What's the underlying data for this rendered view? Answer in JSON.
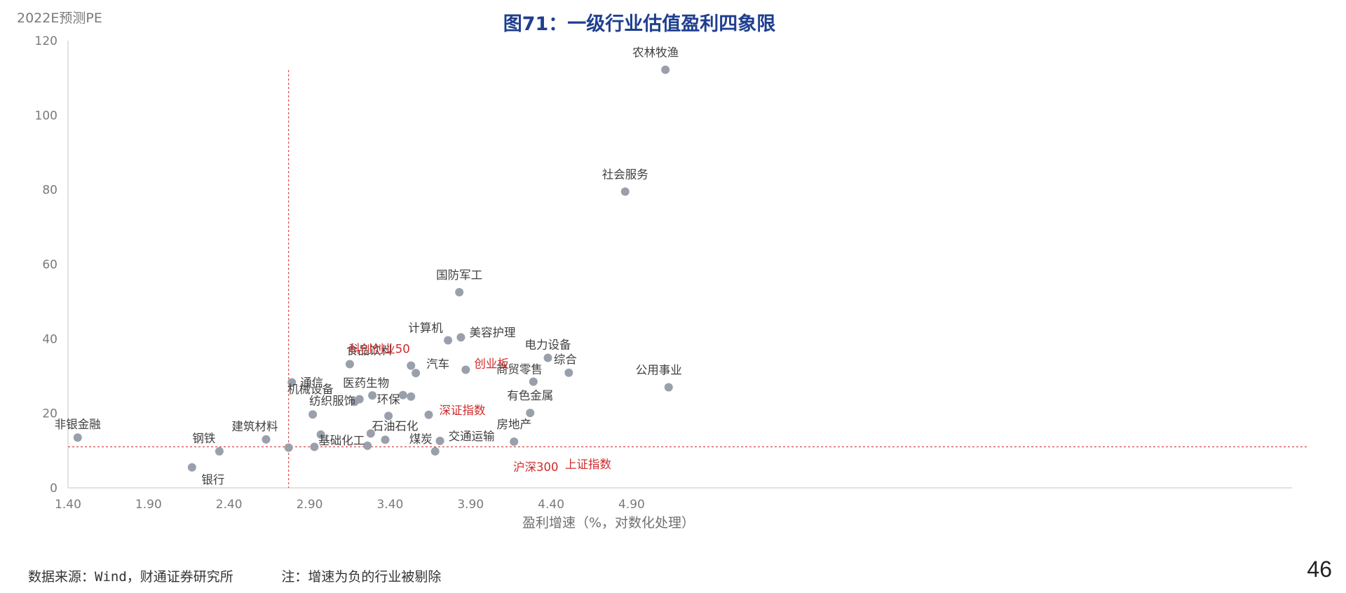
{
  "chart_data": {
    "type": "scatter",
    "title": "图71：一级行业估值盈利四象限",
    "xlabel": "盈利增速（%，对数化处理）",
    "ylabel": "2022E预测PE",
    "xlim": [
      1.4,
      5.2
    ],
    "ylim": [
      0,
      120
    ],
    "x_ticks": [
      "1.40",
      "1.90",
      "2.40",
      "2.90",
      "3.40",
      "3.90",
      "4.40",
      "4.90"
    ],
    "y_ticks": [
      "0",
      "20",
      "40",
      "60",
      "80",
      "100",
      "120"
    ],
    "grid": false,
    "reference_lines": {
      "x": 2.77,
      "y": 11
    },
    "points": [
      {
        "name": "非银金融",
        "x": 1.46,
        "y": 13.5
      },
      {
        "name": "银行",
        "x": 2.17,
        "y": 5.5
      },
      {
        "name": "钢铁",
        "x": 2.34,
        "y": 9.8
      },
      {
        "name": "建筑材料",
        "x": 2.63,
        "y": 13.0
      },
      {
        "name": "",
        "x": 2.77,
        "y": 10.8
      },
      {
        "name": "通信",
        "x": 2.79,
        "y": 28.3
      },
      {
        "name": "纺织服饰",
        "x": 2.92,
        "y": 19.7
      },
      {
        "name": "",
        "x": 2.93,
        "y": 11.0
      },
      {
        "name": "",
        "x": 2.97,
        "y": 14.3
      },
      {
        "name": "食品饮料",
        "x": 3.15,
        "y": 33.2
      },
      {
        "name": "机械设备",
        "x": 3.18,
        "y": 23.1
      },
      {
        "name": "",
        "x": 3.21,
        "y": 23.8
      },
      {
        "name": "基础化工",
        "x": 3.26,
        "y": 11.3
      },
      {
        "name": "",
        "x": 3.28,
        "y": 14.6
      },
      {
        "name": "医药生物",
        "x": 3.29,
        "y": 24.8
      },
      {
        "name": "石油石化",
        "x": 3.37,
        "y": 12.9
      },
      {
        "name": "环保",
        "x": 3.39,
        "y": 19.3
      },
      {
        "name": "",
        "x": 3.48,
        "y": 24.9
      },
      {
        "name": "科创创业50",
        "x": 3.53,
        "y": 32.8
      },
      {
        "name": "",
        "x": 3.53,
        "y": 24.5
      },
      {
        "name": "汽车",
        "x": 3.56,
        "y": 30.8
      },
      {
        "name": "深证指数",
        "x": 3.64,
        "y": 19.6
      },
      {
        "name": "煤炭",
        "x": 3.68,
        "y": 9.8
      },
      {
        "name": "交通运输",
        "x": 3.71,
        "y": 12.6
      },
      {
        "name": "计算机",
        "x": 3.76,
        "y": 39.6
      },
      {
        "name": "国防军工",
        "x": 3.83,
        "y": 52.5
      },
      {
        "name": "美容护理",
        "x": 3.84,
        "y": 40.4
      },
      {
        "name": "创业板",
        "x": 3.87,
        "y": 31.7
      },
      {
        "name": "房地产",
        "x": 4.17,
        "y": 12.4
      },
      {
        "name": "有色金属",
        "x": 4.27,
        "y": 20.1
      },
      {
        "name": "商贸零售",
        "x": 4.29,
        "y": 28.5
      },
      {
        "name": "电力设备",
        "x": 4.38,
        "y": 34.9
      },
      {
        "name": "综合",
        "x": 4.51,
        "y": 30.9
      },
      {
        "name": "社会服务",
        "x": 4.86,
        "y": 79.5
      },
      {
        "name": "农林牧渔",
        "x": 5.11,
        "y": 112.2
      },
      {
        "name": "公用事业",
        "x": 5.13,
        "y": 27.0
      }
    ],
    "index_labels": [
      {
        "name": "沪深300"
      },
      {
        "name": "上证指数"
      }
    ],
    "colors": {
      "point": "#9aa0ab",
      "reference_line": "#d62728",
      "index_label": "#d02a2a",
      "title": "#1f3f8f"
    }
  },
  "footer": {
    "source": "数据来源：Wind，财通证券研究所      注：增速为负的行业被剔除",
    "page_number": "46"
  }
}
